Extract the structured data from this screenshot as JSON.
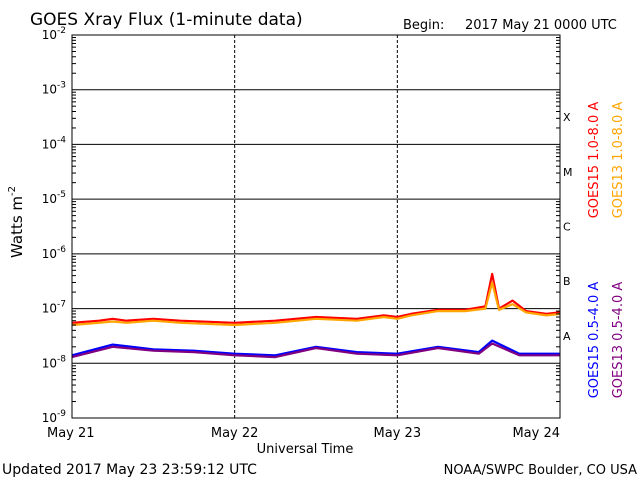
{
  "chart_data": {
    "type": "line",
    "title": "GOES Xray Flux (1-minute data)",
    "begin_label": "Begin:",
    "begin_value": "2017 May 21 0000 UTC",
    "xlabel": "Universal Time",
    "ylabel": "Watts m",
    "ylabel_exp": "-2",
    "x_ticks": [
      "May 21",
      "May 22",
      "May 23",
      "May 24"
    ],
    "x_range": [
      "2017-05-21",
      "2017-05-24"
    ],
    "y_scale": "log",
    "ylim": [
      1e-09,
      0.01
    ],
    "y_ticks": [
      {
        "base": "10",
        "exp": "-2",
        "value": 0.01
      },
      {
        "base": "10",
        "exp": "-3",
        "value": 0.001
      },
      {
        "base": "10",
        "exp": "-4",
        "value": 0.0001
      },
      {
        "base": "10",
        "exp": "-5",
        "value": 1e-05
      },
      {
        "base": "10",
        "exp": "-6",
        "value": 1e-06
      },
      {
        "base": "10",
        "exp": "-7",
        "value": 1e-07
      },
      {
        "base": "10",
        "exp": "-8",
        "value": 1e-08
      },
      {
        "base": "10",
        "exp": "-9",
        "value": 1e-09
      }
    ],
    "flare_classes": [
      {
        "label": "X",
        "min": 0.0001
      },
      {
        "label": "M",
        "min": 1e-05
      },
      {
        "label": "C",
        "min": 1e-06
      },
      {
        "label": "B",
        "min": 1e-07
      },
      {
        "label": "A",
        "min": 1e-08
      }
    ],
    "series": [
      {
        "name": "GOES15 1.0-8.0 A",
        "color": "#ff0000",
        "t": [
          "2017-05-21 00:00",
          "2017-05-21 04:00",
          "2017-05-21 06:00",
          "2017-05-21 08:00",
          "2017-05-21 12:00",
          "2017-05-21 16:00",
          "2017-05-22 00:00",
          "2017-05-22 06:00",
          "2017-05-22 12:00",
          "2017-05-22 18:00",
          "2017-05-22 22:00",
          "2017-05-23 00:00",
          "2017-05-23 02:00",
          "2017-05-23 06:00",
          "2017-05-23 10:00",
          "2017-05-23 13:00",
          "2017-05-23 14:00",
          "2017-05-23 15:00",
          "2017-05-23 17:00",
          "2017-05-23 19:00",
          "2017-05-23 22:00",
          "2017-05-24 00:00"
        ],
        "y": [
          5.5e-08,
          6e-08,
          6.5e-08,
          6e-08,
          6.5e-08,
          6e-08,
          5.5e-08,
          6e-08,
          7e-08,
          6.5e-08,
          7.5e-08,
          7e-08,
          8e-08,
          9.5e-08,
          9.5e-08,
          1.1e-07,
          4.3e-07,
          1e-07,
          1.4e-07,
          9e-08,
          8e-08,
          8.5e-08
        ]
      },
      {
        "name": "GOES13 1.0-8.0 A",
        "color": "#ffa500",
        "t": [
          "2017-05-21 00:00",
          "2017-05-21 04:00",
          "2017-05-21 06:00",
          "2017-05-21 08:00",
          "2017-05-21 12:00",
          "2017-05-21 16:00",
          "2017-05-22 00:00",
          "2017-05-22 06:00",
          "2017-05-22 12:00",
          "2017-05-22 18:00",
          "2017-05-22 22:00",
          "2017-05-23 00:00",
          "2017-05-23 02:00",
          "2017-05-23 06:00",
          "2017-05-23 10:00",
          "2017-05-23 13:00",
          "2017-05-23 14:00",
          "2017-05-23 15:00",
          "2017-05-23 17:00",
          "2017-05-23 19:00",
          "2017-05-23 22:00",
          "2017-05-24 00:00"
        ],
        "y": [
          5e-08,
          5.5e-08,
          5.8e-08,
          5.5e-08,
          6e-08,
          5.5e-08,
          5e-08,
          5.5e-08,
          6.5e-08,
          6e-08,
          7e-08,
          6.5e-08,
          7.5e-08,
          9e-08,
          9e-08,
          1e-07,
          3e-07,
          9.5e-08,
          1.2e-07,
          8.5e-08,
          7.5e-08,
          8e-08
        ]
      },
      {
        "name": "GOES15 0.5-4.0 A",
        "color": "#0000ff",
        "t": [
          "2017-05-21 00:00",
          "2017-05-21 06:00",
          "2017-05-21 12:00",
          "2017-05-21 18:00",
          "2017-05-22 00:00",
          "2017-05-22 06:00",
          "2017-05-22 12:00",
          "2017-05-22 18:00",
          "2017-05-23 00:00",
          "2017-05-23 06:00",
          "2017-05-23 12:00",
          "2017-05-23 14:00",
          "2017-05-23 18:00",
          "2017-05-24 00:00"
        ],
        "y": [
          1.4e-08,
          2.2e-08,
          1.8e-08,
          1.7e-08,
          1.5e-08,
          1.4e-08,
          2e-08,
          1.6e-08,
          1.5e-08,
          2e-08,
          1.6e-08,
          2.6e-08,
          1.5e-08,
          1.5e-08
        ]
      },
      {
        "name": "GOES13 0.5-4.0 A",
        "color": "#800080",
        "t": [
          "2017-05-21 00:00",
          "2017-05-21 06:00",
          "2017-05-21 12:00",
          "2017-05-21 18:00",
          "2017-05-22 00:00",
          "2017-05-22 06:00",
          "2017-05-22 12:00",
          "2017-05-22 18:00",
          "2017-05-23 00:00",
          "2017-05-23 06:00",
          "2017-05-23 12:00",
          "2017-05-23 14:00",
          "2017-05-23 18:00",
          "2017-05-24 00:00"
        ],
        "y": [
          1.3e-08,
          2e-08,
          1.7e-08,
          1.6e-08,
          1.4e-08,
          1.3e-08,
          1.9e-08,
          1.5e-08,
          1.4e-08,
          1.9e-08,
          1.5e-08,
          2.3e-08,
          1.4e-08,
          1.4e-08
        ]
      }
    ]
  },
  "footer": {
    "updated": "Updated 2017 May 23 23:59:12 UTC",
    "credit": "NOAA/SWPC Boulder, CO USA"
  }
}
